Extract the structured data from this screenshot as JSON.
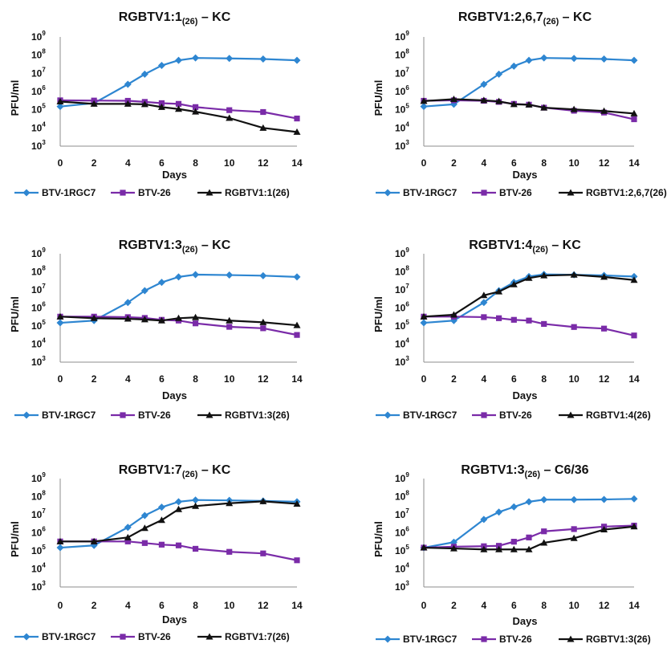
{
  "colors": {
    "BTV-1RGC7": "#2e86d1",
    "BTV-26": "#7a2ba8",
    "reassortant": "#111111"
  },
  "chart_data": [
    {
      "type": "line",
      "title": {
        "main": "RGBTV1:1",
        "sub": "(26)",
        "suffix": " – KC"
      },
      "xlabel": "Days",
      "ylabel": "PFU/ml",
      "y_scale": "log",
      "ylim": [
        1000,
        1000000000
      ],
      "y_ticks": [
        "10^3",
        "10^4",
        "10^5",
        "10^6",
        "10^7",
        "10^8",
        "10^9"
      ],
      "x_ticks": [
        0,
        2,
        4,
        6,
        8,
        10,
        12,
        14
      ],
      "xlim": [
        0,
        14
      ],
      "legend_position": "bottom",
      "x": [
        0,
        2,
        4,
        5,
        6,
        7,
        8,
        10,
        12,
        14
      ],
      "series": [
        {
          "name": "BTV-1RGC7",
          "marker": "diamond",
          "values": [
            150000,
            230000,
            2500000,
            9000000,
            27000000,
            52000000,
            70000000,
            66000000,
            61000000,
            52000000
          ]
        },
        {
          "name": "BTV-26",
          "marker": "square",
          "values": [
            330000,
            320000,
            310000,
            270000,
            230000,
            210000,
            140000,
            95000,
            75000,
            33000
          ]
        },
        {
          "name": "RGBTV1:1(26)",
          "marker": "triangle",
          "values": [
            280000,
            210000,
            210000,
            200000,
            140000,
            110000,
            78000,
            35000,
            10000,
            6000
          ]
        }
      ]
    },
    {
      "type": "line",
      "title": {
        "main": "RGBTV1:2,6,7",
        "sub": "(26)",
        "suffix": " – KC"
      },
      "xlabel": "Days",
      "ylabel": "PFU/ml",
      "y_scale": "log",
      "ylim": [
        1000,
        1000000000
      ],
      "y_ticks": [
        "10^3",
        "10^4",
        "10^5",
        "10^6",
        "10^7",
        "10^8",
        "10^9"
      ],
      "x_ticks": [
        0,
        2,
        4,
        6,
        8,
        10,
        12,
        14
      ],
      "xlim": [
        0,
        14
      ],
      "legend_position": "bottom",
      "x": [
        0,
        2,
        4,
        5,
        6,
        7,
        8,
        10,
        12,
        14
      ],
      "series": [
        {
          "name": "BTV-1RGC7",
          "marker": "diamond",
          "values": [
            150000,
            200000,
            2500000,
            9000000,
            25000000,
            52000000,
            70000000,
            66000000,
            61000000,
            52000000
          ]
        },
        {
          "name": "BTV-26",
          "marker": "square",
          "values": [
            310000,
            330000,
            310000,
            270000,
            210000,
            190000,
            130000,
            88000,
            70000,
            30000
          ]
        },
        {
          "name": "RGBTV1:2,6,7(26)",
          "marker": "triangle",
          "values": [
            300000,
            380000,
            330000,
            290000,
            200000,
            190000,
            130000,
            105000,
            85000,
            62000
          ]
        }
      ]
    },
    {
      "type": "line",
      "title": {
        "main": "RGBTV1:3",
        "sub": "(26)",
        "suffix": " – KC"
      },
      "xlabel": "Days",
      "ylabel": "PFU/ml",
      "y_scale": "log",
      "ylim": [
        1000,
        1000000000
      ],
      "y_ticks": [
        "10^3",
        "10^4",
        "10^5",
        "10^6",
        "10^7",
        "10^8",
        "10^9"
      ],
      "x_ticks": [
        0,
        2,
        4,
        6,
        8,
        10,
        12,
        14
      ],
      "xlim": [
        0,
        14
      ],
      "legend_position": "bottom",
      "x": [
        0,
        2,
        4,
        5,
        6,
        7,
        8,
        10,
        12,
        14
      ],
      "series": [
        {
          "name": "BTV-1RGC7",
          "marker": "diamond",
          "values": [
            150000,
            200000,
            2000000,
            9000000,
            26000000,
            52000000,
            70000000,
            66000000,
            61000000,
            52000000
          ]
        },
        {
          "name": "BTV-26",
          "marker": "square",
          "values": [
            330000,
            330000,
            310000,
            280000,
            220000,
            200000,
            140000,
            90000,
            75000,
            32000
          ]
        },
        {
          "name": "RGBTV1:3(26)",
          "marker": "triangle",
          "values": [
            330000,
            270000,
            250000,
            230000,
            200000,
            270000,
            300000,
            200000,
            160000,
            110000
          ]
        }
      ]
    },
    {
      "type": "line",
      "title": {
        "main": "RGBTV1:4",
        "sub": "(26)",
        "suffix": " – KC"
      },
      "xlabel": "Days",
      "ylabel": "PFU/ml",
      "y_scale": "log",
      "ylim": [
        1000,
        1000000000
      ],
      "y_ticks": [
        "10^3",
        "10^4",
        "10^5",
        "10^6",
        "10^7",
        "10^8",
        "10^9"
      ],
      "x_ticks": [
        0,
        2,
        4,
        6,
        8,
        10,
        12,
        14
      ],
      "xlim": [
        0,
        14
      ],
      "legend_position": "bottom",
      "x": [
        0,
        2,
        4,
        5,
        6,
        7,
        8,
        10,
        12,
        14
      ],
      "series": [
        {
          "name": "BTV-1RGC7",
          "marker": "diamond",
          "values": [
            150000,
            200000,
            2000000,
            9000000,
            26000000,
            55000000,
            72000000,
            68000000,
            63000000,
            55000000
          ]
        },
        {
          "name": "BTV-26",
          "marker": "square",
          "values": [
            330000,
            330000,
            310000,
            270000,
            220000,
            200000,
            130000,
            88000,
            72000,
            30000
          ]
        },
        {
          "name": "RGBTV1:4(26)",
          "marker": "triangle",
          "values": [
            330000,
            420000,
            5000000,
            8000000,
            20000000,
            45000000,
            62000000,
            68000000,
            52000000,
            35000000
          ]
        }
      ]
    },
    {
      "type": "line",
      "title": {
        "main": "RGBTV1:7",
        "sub": "(26)",
        "suffix": " – KC"
      },
      "xlabel": "Days",
      "ylabel": "PFU/ml",
      "y_scale": "log",
      "ylim": [
        1000,
        1000000000
      ],
      "y_ticks": [
        "10^3",
        "10^4",
        "10^5",
        "10^6",
        "10^7",
        "10^8",
        "10^9"
      ],
      "x_ticks": [
        0,
        2,
        4,
        6,
        8,
        10,
        12,
        14
      ],
      "xlim": [
        0,
        14
      ],
      "legend_position": "bottom",
      "x": [
        0,
        2,
        4,
        5,
        6,
        7,
        8,
        10,
        12,
        14
      ],
      "series": [
        {
          "name": "BTV-1RGC7",
          "marker": "diamond",
          "values": [
            150000,
            200000,
            2000000,
            9000000,
            26000000,
            52000000,
            65000000,
            62000000,
            58000000,
            52000000
          ]
        },
        {
          "name": "BTV-26",
          "marker": "square",
          "values": [
            330000,
            330000,
            330000,
            270000,
            220000,
            200000,
            130000,
            88000,
            72000,
            30000
          ]
        },
        {
          "name": "RGBTV1:7(26)",
          "marker": "triangle",
          "values": [
            330000,
            330000,
            550000,
            1800000,
            5000000,
            20000000,
            30000000,
            43000000,
            55000000,
            40000000
          ]
        }
      ]
    },
    {
      "type": "line",
      "title": {
        "main": "RGBTV1:3",
        "sub": "(26)",
        "suffix": " – C6/36"
      },
      "xlabel": "Days",
      "ylabel": "PFU/ml",
      "y_scale": "log",
      "ylim": [
        1000,
        1000000000
      ],
      "y_ticks": [
        "10^3",
        "10^4",
        "10^5",
        "10^6",
        "10^7",
        "10^8",
        "10^9"
      ],
      "x_ticks": [
        0,
        2,
        4,
        6,
        8,
        10,
        12,
        14
      ],
      "xlim": [
        0,
        14
      ],
      "legend_position": "bottom",
      "x": [
        0,
        2,
        4,
        5,
        6,
        7,
        8,
        10,
        12,
        14
      ],
      "series": [
        {
          "name": "BTV-1RGC7",
          "marker": "diamond",
          "values": [
            150000,
            300000,
            5500000,
            14000000,
            27000000,
            52000000,
            68000000,
            68000000,
            70000000,
            75000000
          ]
        },
        {
          "name": "BTV-26",
          "marker": "square",
          "values": [
            150000,
            170000,
            180000,
            190000,
            320000,
            550000,
            1200000,
            1600000,
            2200000,
            2500000
          ]
        },
        {
          "name": "RGBTV1:3(26)",
          "marker": "triangle",
          "values": [
            150000,
            135000,
            120000,
            120000,
            120000,
            120000,
            280000,
            500000,
            1500000,
            2200000
          ]
        }
      ]
    }
  ]
}
